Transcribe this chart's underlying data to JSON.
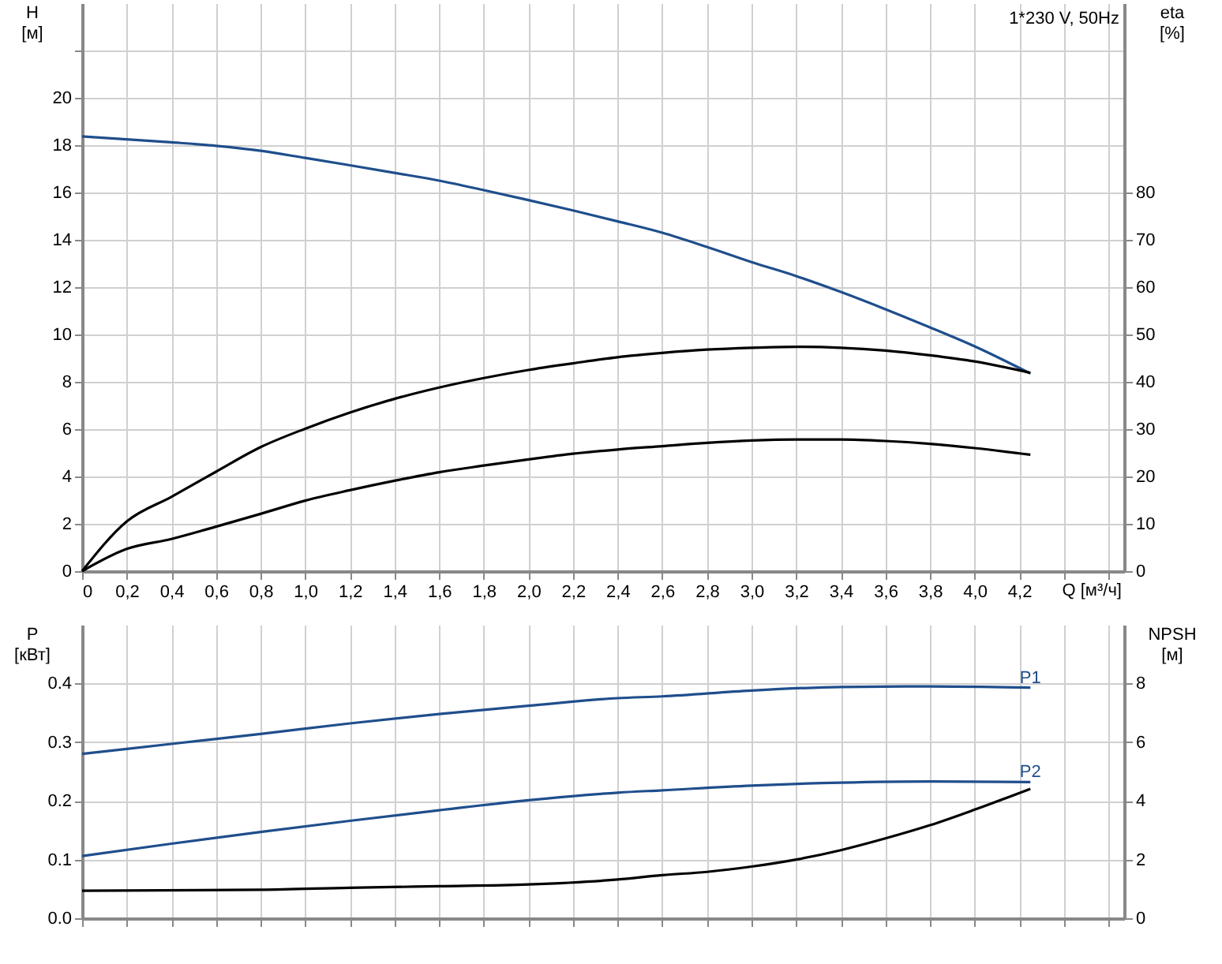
{
  "chart_data": [
    {
      "type": "line",
      "ylabel": "H [м]",
      "y2label": "eta [%]",
      "xlabel": "Q [м³/ч]",
      "annotations": [
        "1*230 V, 50Hz"
      ],
      "grid": true,
      "legend": false,
      "marker": "none",
      "line_style": "solid",
      "xlim": [
        0,
        4.67
      ],
      "xticks": [
        0,
        {
          "value": 0.2,
          "label": "0,2"
        },
        {
          "value": 0.4,
          "label": "0,4"
        },
        {
          "value": 0.6,
          "label": "0,6"
        },
        {
          "value": 0.8,
          "label": "0,8"
        },
        {
          "value": 1.0,
          "label": "1,0"
        },
        {
          "value": 1.2,
          "label": "1,2"
        },
        {
          "value": 1.4,
          "label": "1,4"
        },
        {
          "value": 1.6,
          "label": "1,6"
        },
        {
          "value": 1.8,
          "label": "1,8"
        },
        {
          "value": 2.0,
          "label": "2,0"
        },
        {
          "value": 2.2,
          "label": "2,2"
        },
        {
          "value": 2.4,
          "label": "2,4"
        },
        {
          "value": 2.6,
          "label": "2,6"
        },
        {
          "value": 2.8,
          "label": "2,8"
        },
        {
          "value": 3.0,
          "label": "3,0"
        },
        {
          "value": 3.2,
          "label": "3,2"
        },
        {
          "value": 3.4,
          "label": "3,4"
        },
        {
          "value": 3.6,
          "label": "3,6"
        },
        {
          "value": 3.8,
          "label": "3,8"
        },
        {
          "value": 4.0,
          "label": "4,0"
        },
        {
          "value": 4.2,
          "label": "4,2"
        },
        {
          "value": 4.4,
          "label": null
        },
        {
          "value": 4.6,
          "label": null
        }
      ],
      "ylim": [
        0,
        24
      ],
      "yticks": [
        0,
        2,
        4,
        6,
        8,
        10,
        12,
        14,
        16,
        18,
        20,
        {
          "value": 22,
          "label": null
        }
      ],
      "y2lim": [
        0,
        120
      ],
      "y2ticks": [
        0,
        10,
        20,
        30,
        40,
        50,
        60,
        70,
        80
      ],
      "series": [
        {
          "color": "#1f4e8c",
          "x": [
            0,
            0.4,
            0.6,
            0.8,
            1.0,
            1.2,
            1.4,
            1.6,
            1.8,
            2.0,
            2.2,
            2.4,
            2.6,
            2.8,
            3.0,
            3.2,
            3.4,
            3.6,
            3.8,
            4.0,
            4.25
          ],
          "values": [
            18.37,
            18.12,
            17.97,
            17.76,
            17.46,
            17.15,
            16.83,
            16.5,
            16.1,
            15.68,
            15.24,
            14.78,
            14.3,
            13.7,
            13.06,
            12.47,
            11.8,
            11.07,
            10.3,
            9.5,
            8.35
          ]
        },
        {
          "color": "#000000",
          "axis": "y2",
          "x": [
            0,
            0.2,
            0.4,
            0.6,
            0.8,
            1.0,
            1.2,
            1.4,
            1.6,
            1.8,
            2.0,
            2.2,
            2.4,
            2.6,
            2.8,
            3.0,
            3.2,
            3.4,
            3.6,
            3.8,
            4.0,
            4.25
          ],
          "values": [
            0,
            10.5,
            15.7,
            21,
            26.2,
            30.1,
            33.5,
            36.4,
            38.8,
            40.8,
            42.5,
            43.9,
            45.2,
            46.1,
            46.8,
            47.2,
            47.4,
            47.2,
            46.6,
            45.6,
            44.3,
            41.9
          ]
        },
        {
          "color": "#000000",
          "axis": "y2",
          "x": [
            0,
            0.2,
            0.4,
            0.6,
            0.8,
            1.0,
            1.2,
            1.4,
            1.6,
            1.8,
            2.0,
            2.2,
            2.4,
            2.6,
            2.8,
            3.0,
            3.2,
            3.4,
            3.6,
            3.8,
            4.0,
            4.25
          ],
          "values": [
            0,
            4.7,
            6.8,
            9.4,
            12.1,
            14.9,
            17.1,
            19.1,
            20.9,
            22.3,
            23.6,
            24.8,
            25.7,
            26.4,
            27.1,
            27.6,
            27.8,
            27.8,
            27.5,
            26.9,
            26.0,
            24.6
          ]
        }
      ]
    },
    {
      "type": "line",
      "ylabel": "P [кВт]",
      "y2label": "NPSH [м]",
      "grid": true,
      "legend": false,
      "marker": "none",
      "line_style": "solid",
      "tick_labels": "y",
      "xlim": [
        0,
        4.67
      ],
      "xticks": [
        0,
        0.2,
        0.4,
        0.6,
        0.8,
        1.0,
        1.2,
        1.4,
        1.6,
        1.8,
        2.0,
        2.2,
        2.4,
        2.6,
        2.8,
        3.0,
        3.2,
        3.4,
        3.6,
        3.8,
        4.0,
        4.2,
        4.4,
        4.6
      ],
      "ylim": [
        0,
        0.5
      ],
      "yticks": [
        {
          "value": 0,
          "label": "0.0"
        },
        0.1,
        0.2,
        0.3,
        0.4
      ],
      "y2lim": [
        0,
        10
      ],
      "y2ticks": [
        0,
        2,
        4,
        6,
        8
      ],
      "series": [
        {
          "name": "P1",
          "color": "#1f4e8c",
          "x": [
            0,
            0.4,
            0.8,
            1.2,
            1.6,
            2.0,
            2.4,
            2.6,
            3.0,
            3.4,
            3.8,
            4.25
          ],
          "values": [
            0.28,
            0.297,
            0.314,
            0.332,
            0.348,
            0.362,
            0.375,
            0.378,
            0.388,
            0.394,
            0.395,
            0.393
          ]
        },
        {
          "name": "P2",
          "color": "#1f4e8c",
          "x": [
            0,
            0.4,
            0.8,
            1.2,
            1.6,
            2.0,
            2.4,
            2.6,
            3.0,
            3.4,
            3.8,
            4.25
          ],
          "values": [
            0.106,
            0.127,
            0.147,
            0.166,
            0.184,
            0.201,
            0.214,
            0.218,
            0.226,
            0.231,
            0.233,
            0.232
          ]
        },
        {
          "color": "#000000",
          "axis": "y2",
          "x": [
            0,
            0.8,
            1.2,
            1.6,
            2.0,
            2.4,
            2.6,
            2.8,
            3.0,
            3.2,
            3.4,
            3.6,
            3.8,
            4.0,
            4.25
          ],
          "values": [
            0.94,
            0.97,
            1.04,
            1.09,
            1.15,
            1.32,
            1.47,
            1.58,
            1.76,
            2.0,
            2.32,
            2.72,
            3.17,
            3.7,
            4.41
          ]
        }
      ]
    }
  ]
}
